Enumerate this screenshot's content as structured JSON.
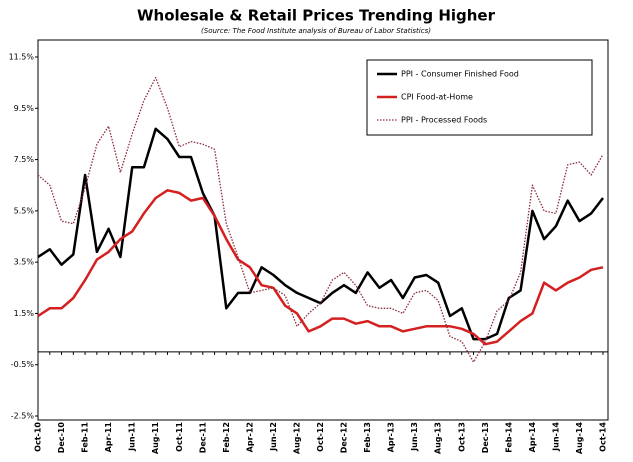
{
  "chart_data": {
    "type": "line",
    "title": "Wholesale & Retail Prices Trending Higher",
    "subtitle": "(Source: The Food Institute analysis of Bureau of Labor Statistics)",
    "categories": [
      "Oct-10",
      null,
      "Dec-10",
      null,
      "Feb-11",
      null,
      "Apr-11",
      null,
      "Jun-11",
      null,
      "Aug-11",
      null,
      "Oct-11",
      null,
      "Dec-11",
      null,
      "Feb-12",
      null,
      "Apr-12",
      null,
      "Jun-12",
      null,
      "Aug-12",
      null,
      "Oct-12",
      null,
      "Dec-12",
      null,
      "Feb-13",
      null,
      "Apr-13",
      null,
      "Jun-13",
      null,
      "Aug-13",
      null,
      "Oct-13",
      null,
      "Dec-13",
      null,
      "Feb-14",
      null,
      "Apr-14",
      null,
      "Jun-14",
      null,
      "Aug-14",
      null,
      "Oct-14"
    ],
    "series": [
      {
        "name": "PPI - Consumer Finished Food",
        "color": "#000000",
        "style": "solid",
        "width": 2.5,
        "values": [
          3.7,
          4.0,
          3.4,
          3.8,
          6.9,
          3.9,
          4.8,
          3.7,
          7.2,
          7.2,
          8.7,
          8.3,
          7.6,
          7.6,
          6.2,
          5.3,
          1.7,
          2.3,
          2.3,
          3.3,
          3.0,
          2.6,
          2.3,
          2.1,
          1.9,
          2.3,
          2.6,
          2.3,
          3.1,
          2.5,
          2.8,
          2.1,
          2.9,
          3.0,
          2.7,
          1.4,
          1.7,
          0.5,
          0.5,
          0.7,
          2.1,
          2.4,
          5.5,
          4.4,
          4.9,
          5.9,
          5.1,
          5.4,
          6.0
        ]
      },
      {
        "name": "CPI Food-at-Home",
        "color": "#d42020",
        "style": "solid",
        "width": 2.5,
        "values": [
          1.4,
          1.7,
          1.7,
          2.1,
          2.8,
          3.6,
          3.9,
          4.4,
          4.7,
          5.4,
          6.0,
          6.3,
          6.2,
          5.9,
          6.0,
          5.3,
          4.4,
          3.6,
          3.3,
          2.6,
          2.5,
          1.8,
          1.5,
          0.8,
          1.0,
          1.3,
          1.3,
          1.1,
          1.2,
          1.0,
          1.0,
          0.8,
          0.9,
          1.0,
          1.0,
          1.0,
          0.9,
          0.7,
          0.3,
          0.4,
          0.8,
          1.2,
          1.5,
          2.7,
          2.4,
          2.7,
          2.9,
          3.2,
          3.3
        ]
      },
      {
        "name": "PPI - Processed Foods",
        "color": "#8b2a3a",
        "style": "dotted",
        "width": 1.3,
        "values": [
          6.9,
          6.5,
          5.1,
          5.0,
          6.4,
          8.1,
          8.8,
          7.0,
          8.5,
          9.8,
          10.7,
          9.5,
          8.0,
          8.2,
          8.1,
          7.9,
          5.0,
          3.7,
          2.3,
          2.4,
          2.5,
          2.2,
          1.0,
          1.5,
          1.9,
          2.8,
          3.1,
          2.6,
          1.8,
          1.7,
          1.7,
          1.5,
          2.3,
          2.4,
          2.0,
          0.6,
          0.4,
          -0.4,
          0.4,
          1.6,
          2.0,
          3.1,
          6.5,
          5.5,
          5.4,
          7.3,
          7.4,
          6.9,
          7.7
        ]
      }
    ],
    "ylim": [
      -2.5,
      11.5
    ],
    "yticks": [
      {
        "value": -2.5,
        "label": "-2.5%"
      },
      {
        "value": -0.5,
        "label": "-0.5%"
      },
      {
        "value": 1.5,
        "label": "1.5%"
      },
      {
        "value": 3.5,
        "label": "3.5%"
      },
      {
        "value": 5.5,
        "label": "5.5%"
      },
      {
        "value": 7.5,
        "label": "7.5%"
      },
      {
        "value": 9.5,
        "label": "9.5%"
      },
      {
        "value": 11.5,
        "label": "11.5%"
      }
    ],
    "grid": false,
    "legend": "top-right"
  }
}
